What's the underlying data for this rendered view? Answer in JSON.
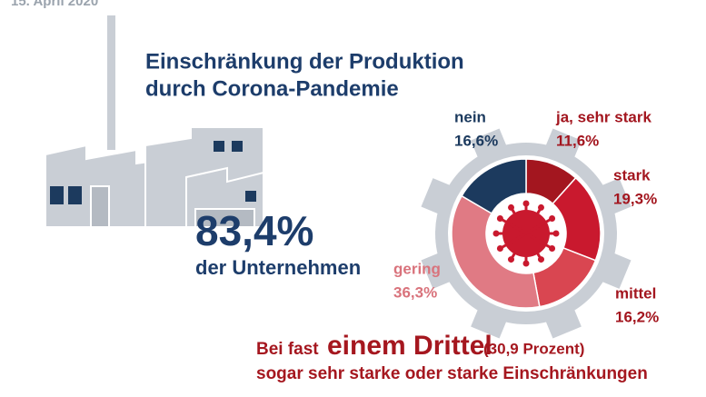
{
  "date": "15. April 2020",
  "headline": {
    "line1": "83,4%",
    "line2": "der Unternehmen"
  },
  "footer": {
    "prefix": "Bei fast",
    "emphasis": "einem Drittel",
    "note": "(30,9 Prozent)",
    "line2": "sogar sehr starke oder starke Einschränkungen"
  },
  "chart_data": {
    "type": "donut",
    "title": [
      "Einschränkung der Produktion",
      "durch Corona-Pandemie"
    ],
    "categories": [
      "ja, sehr stark",
      "stark",
      "mittel",
      "gering",
      "nein"
    ],
    "values": [
      11.6,
      19.3,
      16.2,
      36.3,
      16.6
    ],
    "value_labels": [
      "11,6%",
      "19,3%",
      "16,2%",
      "36,3%",
      "16,6%"
    ],
    "colors": [
      "#a3161f",
      "#c9192e",
      "#d94651",
      "#e07a84",
      "#1c3a5e"
    ]
  }
}
